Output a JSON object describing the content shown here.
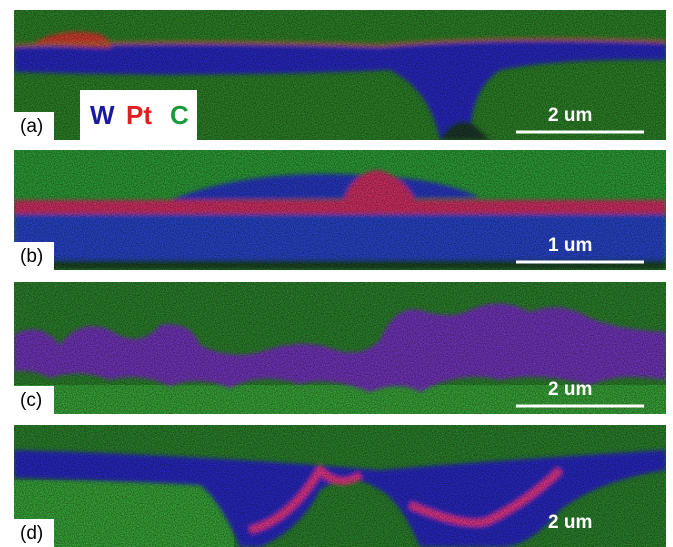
{
  "legend": {
    "items": [
      "W",
      "Pt",
      "C"
    ]
  },
  "panels": [
    {
      "label": "(a)",
      "scale": "2 um"
    },
    {
      "label": "(b)",
      "scale": "1 um"
    },
    {
      "label": "(c)",
      "scale": "2 um"
    },
    {
      "label": "(d)",
      "scale": "2 um"
    }
  ]
}
